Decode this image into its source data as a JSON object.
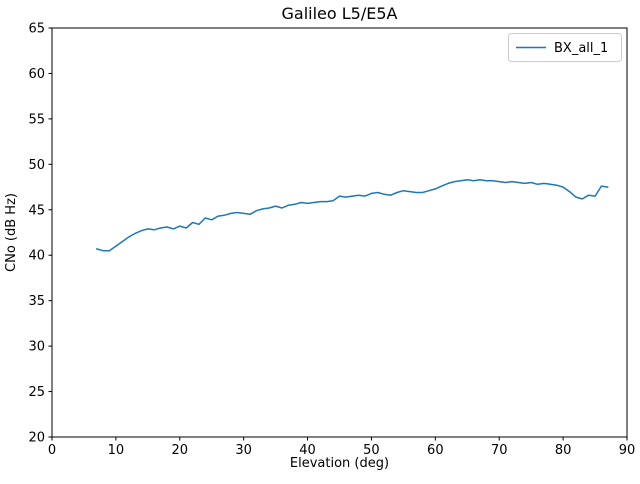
{
  "figure": {
    "background": "#ffffff",
    "frame_color": "#000000"
  },
  "chart_data": {
    "type": "line",
    "title": "Galileo L5/E5A",
    "xlabel": "Elevation (deg)",
    "ylabel": "CNo (dB Hz)",
    "xlim": [
      0,
      90
    ],
    "ylim": [
      20,
      65
    ],
    "xticks": [
      0,
      10,
      20,
      30,
      40,
      50,
      60,
      70,
      80,
      90
    ],
    "yticks": [
      20,
      25,
      30,
      35,
      40,
      45,
      50,
      55,
      60,
      65
    ],
    "grid": false,
    "legend": {
      "position": "upper right",
      "entries": [
        {
          "label": "BX_all_1",
          "color": "#1f77b4"
        }
      ]
    },
    "series": [
      {
        "name": "BX_all_1",
        "color": "#1f77b4",
        "linewidth": 1.5,
        "x": [
          7,
          8,
          9,
          10,
          11,
          12,
          13,
          14,
          15,
          16,
          17,
          18,
          19,
          20,
          21,
          22,
          23,
          24,
          25,
          26,
          27,
          28,
          29,
          30,
          31,
          32,
          33,
          34,
          35,
          36,
          37,
          38,
          39,
          40,
          41,
          42,
          43,
          44,
          45,
          46,
          47,
          48,
          49,
          50,
          51,
          52,
          53,
          54,
          55,
          56,
          57,
          58,
          59,
          60,
          61,
          62,
          63,
          64,
          65,
          66,
          67,
          68,
          69,
          70,
          71,
          72,
          73,
          74,
          75,
          76,
          77,
          78,
          79,
          80,
          81,
          82,
          83,
          84,
          85,
          86,
          87
        ],
        "y": [
          40.7,
          40.5,
          40.5,
          41.0,
          41.5,
          42.0,
          42.4,
          42.7,
          42.9,
          42.8,
          43.0,
          43.1,
          42.9,
          43.2,
          43.0,
          43.6,
          43.4,
          44.1,
          43.9,
          44.3,
          44.4,
          44.6,
          44.7,
          44.6,
          44.5,
          44.9,
          45.1,
          45.2,
          45.4,
          45.2,
          45.5,
          45.6,
          45.8,
          45.7,
          45.8,
          45.9,
          45.9,
          46.0,
          46.5,
          46.4,
          46.5,
          46.6,
          46.5,
          46.8,
          46.9,
          46.7,
          46.6,
          46.9,
          47.1,
          47.0,
          46.9,
          46.9,
          47.1,
          47.3,
          47.6,
          47.9,
          48.1,
          48.2,
          48.3,
          48.2,
          48.3,
          48.2,
          48.2,
          48.1,
          48.0,
          48.1,
          48.0,
          47.9,
          48.0,
          47.8,
          47.9,
          47.8,
          47.7,
          47.5,
          47.0,
          46.4,
          46.2,
          46.6,
          46.5,
          47.6,
          47.5
        ]
      }
    ]
  }
}
